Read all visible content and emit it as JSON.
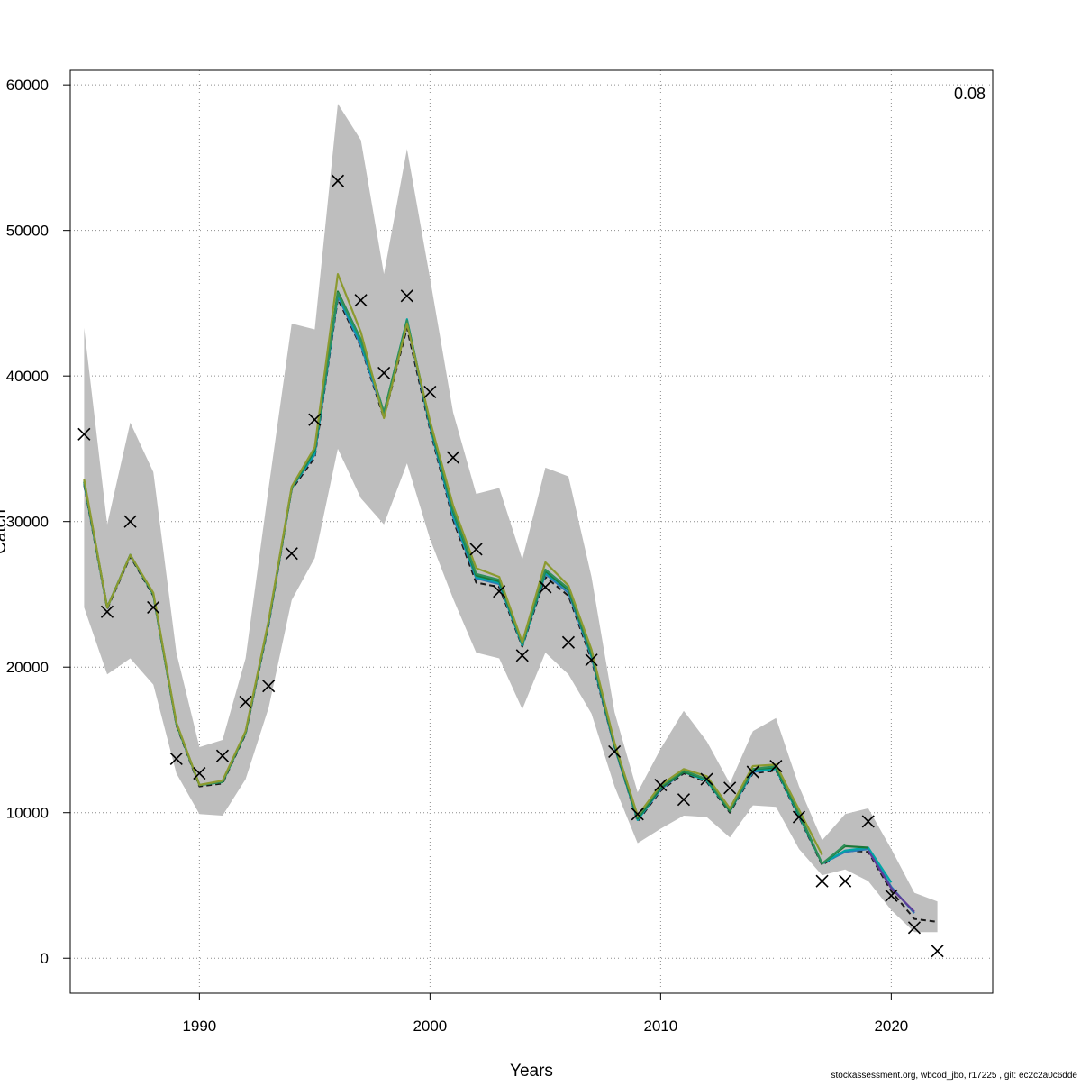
{
  "chart_data": {
    "type": "line",
    "title": "",
    "xlabel": "Years",
    "ylabel": "Catch",
    "xlim": [
      1984.4,
      2024.4
    ],
    "ylim": [
      -2400,
      61000
    ],
    "x_ticks": [
      1990,
      2000,
      2010,
      2020
    ],
    "y_ticks": [
      0,
      10000,
      20000,
      30000,
      40000,
      50000,
      60000
    ],
    "grid": true,
    "corner_label": "0.08",
    "footer_text": "stockassessment.org, wbcod_jbo, r17225 , git: ec2c2a0c6dde",
    "band_color": "#bebebe",
    "band": {
      "x": [
        1985,
        1986,
        1987,
        1988,
        1989,
        1990,
        1991,
        1992,
        1993,
        1994,
        1995,
        1996,
        1997,
        1998,
        1999,
        2000,
        2001,
        2002,
        2003,
        2004,
        2005,
        2006,
        2007,
        2008,
        2009,
        2010,
        2011,
        2012,
        2013,
        2014,
        2015,
        2016,
        2017,
        2018,
        2019,
        2020,
        2021,
        2022
      ],
      "upper": [
        43300,
        29800,
        36800,
        33400,
        21000,
        14500,
        15000,
        20600,
        32300,
        43600,
        43200,
        58700,
        56200,
        47000,
        55600,
        46700,
        37500,
        31900,
        32300,
        27400,
        33700,
        33100,
        26200,
        16900,
        11400,
        14400,
        17000,
        14900,
        12000,
        15600,
        16500,
        11800,
        8100,
        9900,
        10300,
        7500,
        4500,
        3900
      ],
      "lower": [
        24100,
        19500,
        20600,
        18800,
        12700,
        9900,
        9800,
        12300,
        17200,
        24600,
        27500,
        35000,
        31600,
        29800,
        34000,
        28800,
        24700,
        21000,
        20600,
        17100,
        21000,
        19500,
        16800,
        11800,
        7900,
        8900,
        9800,
        9700,
        8300,
        10500,
        10400,
        7500,
        5700,
        6100,
        5300,
        3300,
        1800,
        1800
      ]
    },
    "series": [
      {
        "color": "#1a1a1a",
        "dashed": true,
        "x": [
          1985,
          1986,
          1987,
          1988,
          1989,
          1990,
          1991,
          1992,
          1993,
          1994,
          1995,
          1996,
          1997,
          1998,
          1999,
          2000,
          2001,
          2002,
          2003,
          2004,
          2005,
          2006,
          2007,
          2008,
          2009,
          2010,
          2011,
          2012,
          2013,
          2014,
          2015,
          2016,
          2017,
          2018,
          2019,
          2020,
          2021,
          2022
        ],
        "y": [
          32500,
          24000,
          27600,
          24900,
          16000,
          11800,
          12000,
          15400,
          22900,
          32200,
          34400,
          45300,
          42000,
          37100,
          43300,
          36300,
          30100,
          25800,
          25500,
          21400,
          26200,
          24900,
          20500,
          14500,
          9400,
          11500,
          12700,
          12100,
          10000,
          12700,
          12900,
          9700,
          6400,
          7400,
          7300,
          4600,
          2700,
          2500
        ]
      },
      {
        "color": "#2c7bb6",
        "dashed": false,
        "x": [
          1985,
          1986,
          1987,
          1988,
          1989,
          1990,
          1991,
          1992,
          1993,
          1994,
          1995,
          1996,
          1997,
          1998,
          1999,
          2000,
          2001,
          2002,
          2003,
          2004,
          2005,
          2006,
          2007,
          2008,
          2009,
          2010,
          2011,
          2012,
          2013,
          2014,
          2015,
          2016,
          2017,
          2018,
          2019,
          2020,
          2021
        ],
        "y": [
          32600,
          24100,
          27700,
          25000,
          16100,
          11900,
          12100,
          15500,
          23000,
          32300,
          34600,
          45500,
          42100,
          37300,
          43700,
          36500,
          30300,
          26100,
          25700,
          21500,
          26400,
          25100,
          20700,
          14500,
          9500,
          11600,
          12800,
          12200,
          10100,
          12800,
          13000,
          9800,
          6500,
          7300,
          7500,
          4900,
          3100
        ]
      },
      {
        "color": "#00a6a6",
        "dashed": false,
        "x": [
          1985,
          1986,
          1987,
          1988,
          1989,
          1990,
          1991,
          1992,
          1993,
          1994,
          1995,
          1996,
          1997,
          1998,
          1999,
          2000,
          2001,
          2002,
          2003,
          2004,
          2005,
          2006,
          2007,
          2008,
          2009,
          2010,
          2011,
          2012,
          2013,
          2014,
          2015,
          2016,
          2017,
          2018,
          2019,
          2020
        ],
        "y": [
          32700,
          24100,
          27700,
          25000,
          16100,
          11900,
          12100,
          15500,
          23100,
          32300,
          34700,
          45600,
          42300,
          37400,
          43900,
          36600,
          30500,
          26200,
          25800,
          21500,
          26500,
          25300,
          20800,
          14600,
          9500,
          11700,
          12800,
          12200,
          10100,
          12900,
          13000,
          9800,
          6500,
          7400,
          7600,
          5200
        ]
      },
      {
        "color": "#1b7837",
        "dashed": false,
        "x": [
          1985,
          1986,
          1987,
          1988,
          1989,
          1990,
          1991,
          1992,
          1993,
          1994,
          1995,
          1996,
          1997,
          1998,
          1999,
          2000,
          2001,
          2002,
          2003,
          2004,
          2005,
          2006,
          2007,
          2008,
          2009,
          2010,
          2011,
          2012,
          2013,
          2014,
          2015,
          2016,
          2017,
          2018,
          2019
        ],
        "y": [
          32700,
          24100,
          27700,
          25000,
          16100,
          11900,
          12100,
          15500,
          23100,
          32300,
          34900,
          45800,
          42500,
          37500,
          43800,
          36700,
          30700,
          26300,
          25900,
          21600,
          26600,
          25300,
          20900,
          14600,
          9600,
          11700,
          12800,
          12300,
          10100,
          13000,
          13100,
          9900,
          6500,
          7700,
          7600
        ]
      },
      {
        "color": "#2f8f5a",
        "dashed": false,
        "x": [
          1985,
          1986,
          1987,
          1988,
          1989,
          1990,
          1991,
          1992,
          1993,
          1994,
          1995,
          1996,
          1997,
          1998,
          1999,
          2000,
          2001,
          2002,
          2003,
          2004,
          2005,
          2006,
          2007,
          2008,
          2009,
          2010,
          2011,
          2012,
          2013,
          2014,
          2015,
          2016,
          2017,
          2018
        ],
        "y": [
          32800,
          24100,
          27700,
          25000,
          16100,
          11900,
          12100,
          15500,
          23100,
          32300,
          35000,
          45700,
          42500,
          37500,
          43800,
          36800,
          30800,
          26400,
          26000,
          21600,
          26700,
          25400,
          21000,
          14700,
          9700,
          11800,
          12900,
          12300,
          10200,
          13000,
          13200,
          10000,
          6500,
          7800
        ]
      },
      {
        "color": "#8c9a2f",
        "dashed": false,
        "x": [
          1985,
          1986,
          1987,
          1988,
          1989,
          1990,
          1991,
          1992,
          1993,
          1994,
          1995,
          1996,
          1997,
          1998,
          1999,
          2000,
          2001,
          2002,
          2003,
          2004,
          2005,
          2006,
          2007,
          2008,
          2009,
          2010,
          2011,
          2012,
          2013,
          2014,
          2015,
          2016,
          2017
        ],
        "y": [
          32900,
          24100,
          27700,
          25100,
          16200,
          11900,
          12200,
          15600,
          23200,
          32400,
          35100,
          47000,
          43000,
          37100,
          43600,
          36900,
          31100,
          26800,
          26200,
          21700,
          27200,
          25600,
          21200,
          14800,
          9800,
          11900,
          13000,
          12500,
          10300,
          13200,
          13300,
          10200,
          7100
        ]
      },
      {
        "color": "#5e3c99",
        "dashed": false,
        "x": [
          2019,
          2020,
          2021
        ],
        "y": [
          7400,
          4800,
          3200
        ]
      }
    ],
    "observed": {
      "marker": "x",
      "x": [
        1985,
        1986,
        1987,
        1988,
        1989,
        1990,
        1991,
        1992,
        1993,
        1994,
        1995,
        1996,
        1997,
        1998,
        1999,
        2000,
        2001,
        2002,
        2003,
        2004,
        2005,
        2006,
        2007,
        2008,
        2009,
        2010,
        2011,
        2012,
        2013,
        2014,
        2015,
        2016,
        2017,
        2018,
        2019,
        2020,
        2021,
        2022
      ],
      "y": [
        36000,
        23800,
        30000,
        24100,
        13700,
        12700,
        13900,
        17600,
        18700,
        27800,
        37000,
        53400,
        45200,
        40200,
        45500,
        38900,
        34400,
        28100,
        25200,
        20800,
        25500,
        21700,
        20500,
        14200,
        9900,
        11900,
        10900,
        12300,
        11700,
        12800,
        13200,
        9700,
        5300,
        5300,
        9400,
        4300,
        2100,
        500
      ]
    }
  }
}
